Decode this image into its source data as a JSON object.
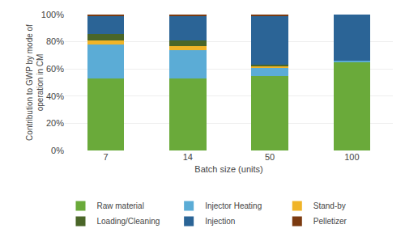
{
  "chart_data": {
    "type": "bar",
    "stacked": true,
    "xlabel": "Batch size (units)",
    "ylabel": "Contribution to GWP by mode of\noperation in CM",
    "categories": [
      "7",
      "14",
      "50",
      "100"
    ],
    "series": [
      {
        "name": "Raw material",
        "color": "#6aaa3a",
        "values": [
          53,
          53,
          55,
          65
        ]
      },
      {
        "name": "Injector Heating",
        "color": "#5bacd6",
        "values": [
          25,
          21,
          6,
          1
        ]
      },
      {
        "name": "Stand-by",
        "color": "#f0b428",
        "values": [
          3,
          3,
          1,
          0
        ]
      },
      {
        "name": "Loading/Cleaning",
        "color": "#4a6628",
        "values": [
          5,
          4,
          1,
          0
        ]
      },
      {
        "name": "Injection",
        "color": "#2b6496",
        "values": [
          13,
          18,
          36,
          34
        ]
      },
      {
        "name": "Pelletizer",
        "color": "#7b3a10",
        "values": [
          1,
          1,
          1,
          0
        ]
      }
    ],
    "ylim": [
      0,
      100
    ],
    "yticks": [
      {
        "value": 0,
        "label": "0%"
      },
      {
        "value": 20,
        "label": "20%"
      },
      {
        "value": 40,
        "label": "40%"
      },
      {
        "value": 60,
        "label": "60%"
      },
      {
        "value": 80,
        "label": "80%"
      },
      {
        "value": 100,
        "label": "100%"
      }
    ],
    "grid": true,
    "legend": "bottom"
  }
}
